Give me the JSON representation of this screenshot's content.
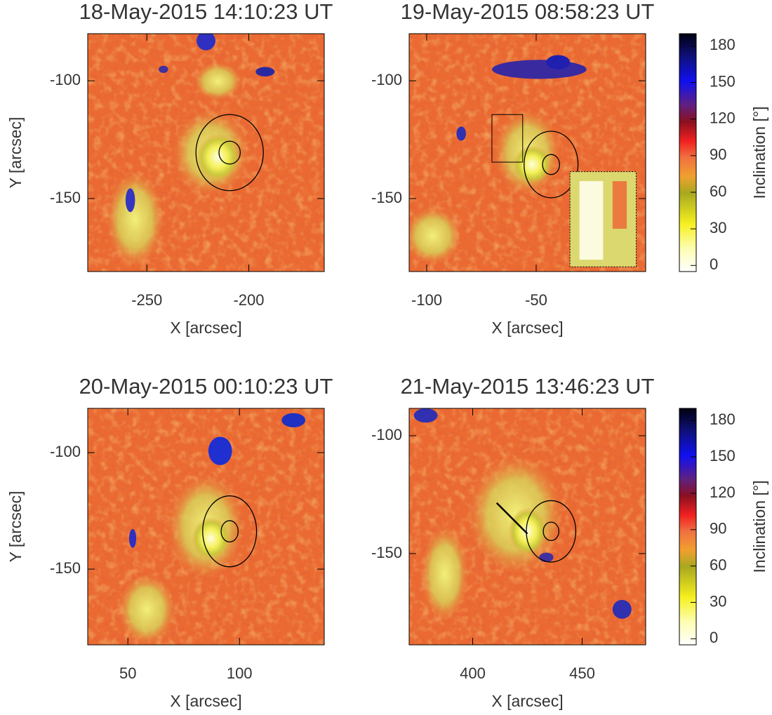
{
  "chart_data": [
    {
      "type": "heatmap",
      "title": "18-May-2015 14:10:23 UT",
      "xlabel": "X [arcsec]",
      "ylabel": "Y [arcsec]",
      "xlim": [
        -279,
        -163
      ],
      "ylim": [
        -181,
        -80
      ],
      "xticks": [
        -250,
        -200
      ],
      "yticks": [
        -100,
        -150
      ]
    },
    {
      "type": "heatmap",
      "title": "19-May-2015 08:58:23 UT",
      "xlabel": "X [arcsec]",
      "xlim": [
        -108,
        0
      ],
      "ylim": [
        -181,
        -80
      ],
      "xticks": [
        -100,
        -50
      ],
      "yticks": [
        -100,
        -150
      ],
      "colorbar": {
        "label": "Inclination [°]",
        "lim": [
          -5,
          190
        ],
        "ticks": [
          180,
          150,
          120,
          90,
          60,
          30,
          0
        ]
      }
    },
    {
      "type": "heatmap",
      "title": "20-May-2015 00:10:23 UT",
      "xlabel": "X [arcsec]",
      "ylabel": "Y [arcsec]",
      "xlim": [
        32,
        138
      ],
      "ylim": [
        -182.5,
        -81
      ],
      "xticks": [
        50,
        100
      ],
      "yticks": [
        -100,
        -150
      ]
    },
    {
      "type": "heatmap",
      "title": "21-May-2015 13:46:23 UT",
      "xlabel": "X [arcsec]",
      "xlim": [
        371,
        479
      ],
      "ylim": [
        -188.7,
        -88.4
      ],
      "xticks": [
        400,
        450
      ],
      "yticks": [
        -100,
        -150
      ],
      "colorbar": {
        "label": "Inclination [°]",
        "lim": [
          -5,
          190
        ],
        "ticks": [
          180,
          150,
          120,
          90,
          60,
          30,
          0
        ]
      }
    }
  ]
}
